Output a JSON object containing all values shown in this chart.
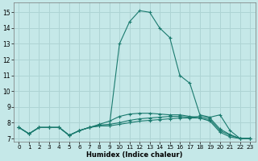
{
  "xlabel": "Humidex (Indice chaleur)",
  "bg_color": "#c5e8e8",
  "grid_color": "#aed4d4",
  "line_color": "#1a7a6e",
  "x_ticks": [
    0,
    1,
    2,
    3,
    4,
    5,
    6,
    7,
    8,
    9,
    10,
    11,
    12,
    13,
    14,
    15,
    16,
    17,
    18,
    19,
    20,
    21,
    22,
    23
  ],
  "y_ticks": [
    7,
    8,
    9,
    10,
    11,
    12,
    13,
    14,
    15
  ],
  "ylim": [
    6.8,
    15.6
  ],
  "xlim": [
    -0.5,
    23.5
  ],
  "lines": [
    {
      "x": [
        0,
        1,
        2,
        3,
        4,
        5,
        6,
        7,
        8,
        9,
        10,
        11,
        12,
        13,
        14,
        15,
        16,
        17,
        18,
        19,
        20,
        21,
        22,
        23
      ],
      "y": [
        7.7,
        7.3,
        7.7,
        7.7,
        7.7,
        7.2,
        7.5,
        7.7,
        7.8,
        7.8,
        13.0,
        14.4,
        15.1,
        15.0,
        14.0,
        13.4,
        11.0,
        10.5,
        8.5,
        8.35,
        8.5,
        7.5,
        7.0,
        7.0
      ]
    },
    {
      "x": [
        0,
        1,
        2,
        3,
        4,
        5,
        6,
        7,
        8,
        9,
        10,
        11,
        12,
        13,
        14,
        15,
        16,
        17,
        18,
        19,
        20,
        21,
        22,
        23
      ],
      "y": [
        7.7,
        7.3,
        7.7,
        7.7,
        7.7,
        7.2,
        7.5,
        7.7,
        7.8,
        7.8,
        7.9,
        8.0,
        8.1,
        8.15,
        8.2,
        8.25,
        8.3,
        8.3,
        8.3,
        8.2,
        7.5,
        7.2,
        7.0,
        7.0
      ]
    },
    {
      "x": [
        0,
        1,
        2,
        3,
        4,
        5,
        6,
        7,
        8,
        9,
        10,
        11,
        12,
        13,
        14,
        15,
        16,
        17,
        18,
        19,
        20,
        21,
        22,
        23
      ],
      "y": [
        7.7,
        7.3,
        7.7,
        7.7,
        7.7,
        7.2,
        7.5,
        7.7,
        7.85,
        7.9,
        8.0,
        8.15,
        8.25,
        8.3,
        8.35,
        8.4,
        8.4,
        8.35,
        8.4,
        8.3,
        7.6,
        7.25,
        7.0,
        7.0
      ]
    },
    {
      "x": [
        0,
        1,
        2,
        3,
        4,
        5,
        6,
        7,
        8,
        9,
        10,
        11,
        12,
        13,
        14,
        15,
        16,
        17,
        18,
        19,
        20,
        21,
        22,
        23
      ],
      "y": [
        7.7,
        7.3,
        7.7,
        7.7,
        7.7,
        7.2,
        7.5,
        7.7,
        7.9,
        8.1,
        8.4,
        8.55,
        8.6,
        8.6,
        8.55,
        8.5,
        8.5,
        8.4,
        8.3,
        8.1,
        7.4,
        7.1,
        7.0,
        7.0
      ]
    }
  ]
}
